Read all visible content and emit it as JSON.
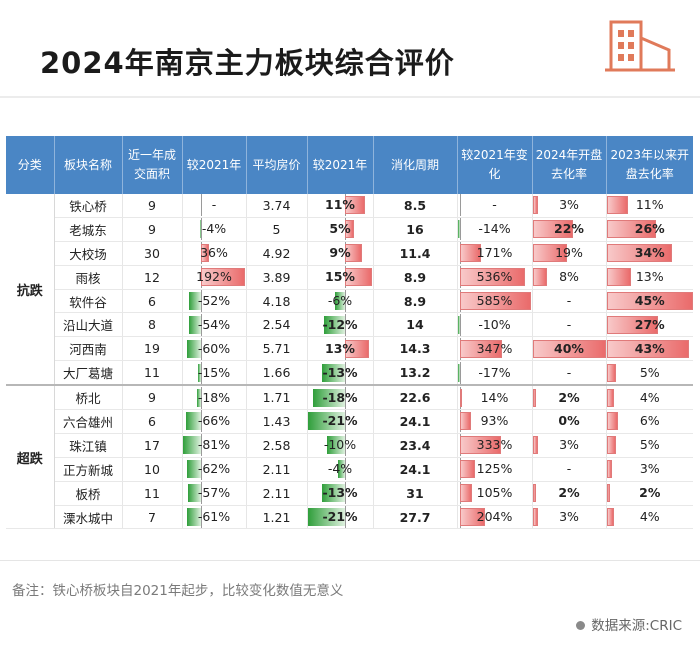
{
  "title": "2024年南京主力板块综合评价",
  "headers": [
    "分类",
    "板块名称",
    "近一年成交面积",
    "较2021年",
    "平均房价",
    "较2021年",
    "消化周期",
    "较2021年变化",
    "2024年开盘去化率",
    "2023年以来开盘去化率"
  ],
  "groups": [
    {
      "name": "抗跌",
      "rows": [
        {
          "name": "铁心桥",
          "area": "9",
          "area_chg": "-",
          "price": "3.74",
          "price_chg": "11%",
          "cycle": "8.5",
          "cycle_chg": "-",
          "q2024": "3%",
          "q2023": "11%"
        },
        {
          "name": "老城东",
          "area": "9",
          "area_chg": "-4%",
          "price": "5",
          "price_chg": "5%",
          "cycle": "16",
          "cycle_chg": "-14%",
          "q2024": "22%",
          "q2023": "26%"
        },
        {
          "name": "大校场",
          "area": "30",
          "area_chg": "36%",
          "price": "4.92",
          "price_chg": "9%",
          "cycle": "11.4",
          "cycle_chg": "171%",
          "q2024": "19%",
          "q2023": "34%"
        },
        {
          "name": "雨核",
          "area": "12",
          "area_chg": "192%",
          "price": "3.89",
          "price_chg": "15%",
          "cycle": "8.9",
          "cycle_chg": "536%",
          "q2024": "8%",
          "q2023": "13%"
        },
        {
          "name": "软件谷",
          "area": "6",
          "area_chg": "-52%",
          "price": "4.18",
          "price_chg": "-6%",
          "cycle": "8.9",
          "cycle_chg": "585%",
          "q2024": "-",
          "q2023": "45%"
        },
        {
          "name": "沿山大道",
          "area": "8",
          "area_chg": "-54%",
          "price": "2.54",
          "price_chg": "-12%",
          "cycle": "14",
          "cycle_chg": "-10%",
          "q2024": "-",
          "q2023": "27%"
        },
        {
          "name": "河西南",
          "area": "19",
          "area_chg": "-60%",
          "price": "5.71",
          "price_chg": "13%",
          "cycle": "14.3",
          "cycle_chg": "347%",
          "q2024": "40%",
          "q2023": "43%"
        },
        {
          "name": "大厂葛塘",
          "area": "11",
          "area_chg": "-15%",
          "price": "1.66",
          "price_chg": "-13%",
          "cycle": "13.2",
          "cycle_chg": "-17%",
          "q2024": "-",
          "q2023": "5%"
        }
      ]
    },
    {
      "name": "超跌",
      "rows": [
        {
          "name": "桥北",
          "area": "9",
          "area_chg": "-18%",
          "price": "1.71",
          "price_chg": "-18%",
          "cycle": "22.6",
          "cycle_chg": "14%",
          "q2024": "2%",
          "q2023": "4%"
        },
        {
          "name": "六合雄州",
          "area": "6",
          "area_chg": "-66%",
          "price": "1.43",
          "price_chg": "-21%",
          "cycle": "24.1",
          "cycle_chg": "93%",
          "q2024": "0%",
          "q2023": "6%"
        },
        {
          "name": "珠江镇",
          "area": "17",
          "area_chg": "-81%",
          "price": "2.58",
          "price_chg": "-10%",
          "cycle": "23.4",
          "cycle_chg": "333%",
          "q2024": "3%",
          "q2023": "5%"
        },
        {
          "name": "正方新城",
          "area": "10",
          "area_chg": "-62%",
          "price": "2.11",
          "price_chg": "-4%",
          "cycle": "24.1",
          "cycle_chg": "125%",
          "q2024": "-",
          "q2023": "3%"
        },
        {
          "name": "板桥",
          "area": "11",
          "area_chg": "-57%",
          "price": "2.11",
          "price_chg": "-13%",
          "cycle": "31",
          "cycle_chg": "105%",
          "q2024": "2%",
          "q2023": "2%"
        },
        {
          "name": "溧水城中",
          "area": "7",
          "area_chg": "-61%",
          "price": "1.21",
          "price_chg": "-21%",
          "cycle": "27.7",
          "cycle_chg": "204%",
          "q2024": "3%",
          "q2023": "4%"
        }
      ]
    }
  ],
  "note": "备注：铁心桥板块自2021年起步，比较变化数值无意义",
  "source": "数据来源:CRIC",
  "chart_data": {
    "type": "table",
    "title": "2024年南京主力板块综合评价",
    "columns": [
      "分类",
      "板块名称",
      "近一年成交面积",
      "较2021年",
      "平均房价",
      "较2021年",
      "消化周期",
      "较2021年变化",
      "2024年开盘去化率",
      "2023年以来开盘去化率"
    ],
    "bar_columns": [
      "较2021年",
      "较2021年",
      "较2021年变化",
      "2024年开盘去化率",
      "2023年以来开盘去化率"
    ],
    "bar_scales": {
      "area_chg": [
        -81,
        192
      ],
      "price_chg": [
        -21,
        15
      ],
      "cycle_chg": [
        -17,
        585
      ],
      "q2024": [
        0,
        40
      ],
      "q2023": [
        0,
        45
      ]
    },
    "colors": {
      "header": "#4a86c5",
      "positive": "#ea6b6b",
      "negative": "#2f9e3a"
    }
  }
}
